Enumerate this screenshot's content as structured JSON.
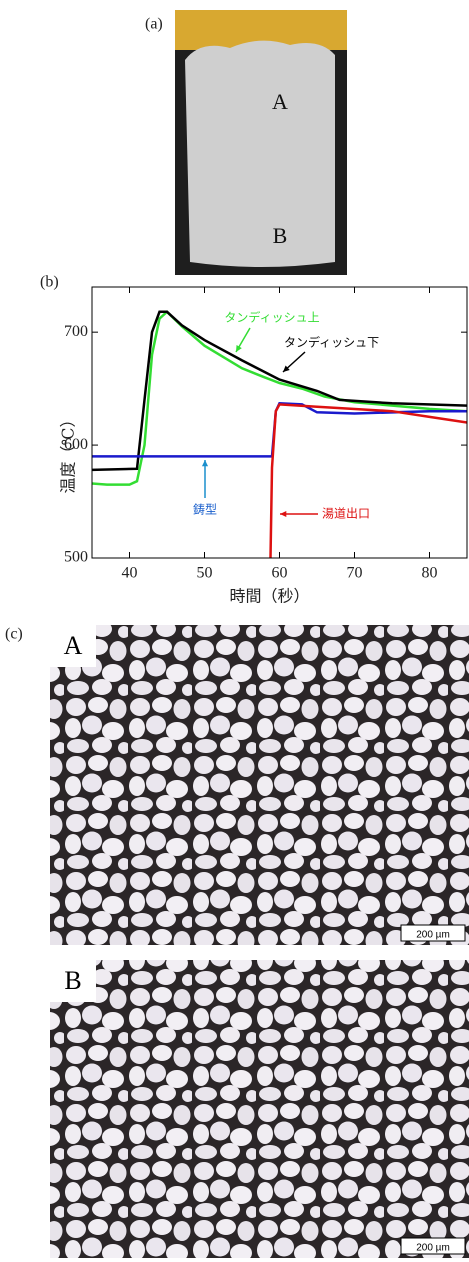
{
  "panel_a": {
    "label": "(a)",
    "points": [
      "A",
      "B"
    ]
  },
  "chart_data": {
    "type": "line",
    "panel_label": "(b)",
    "xlabel": "時間（秒）",
    "ylabel": "温度（℃）",
    "xlim": [
      35,
      85
    ],
    "ylim": [
      500,
      740
    ],
    "xticks": [
      40,
      50,
      60,
      70,
      80
    ],
    "yticks": [
      500,
      600,
      700
    ],
    "series": [
      {
        "name": "タンディッシュ上",
        "color": "#33dd33",
        "x": [
          35,
          37,
          40,
          41,
          42,
          43,
          44,
          45,
          47,
          50,
          55,
          58,
          60,
          63,
          66,
          70,
          80,
          85
        ],
        "values": [
          566,
          565,
          565,
          568,
          600,
          680,
          712,
          718,
          705,
          688,
          668,
          660,
          655,
          650,
          643,
          638,
          632,
          630
        ]
      },
      {
        "name": "タンディッシュ下",
        "color": "#000000",
        "x": [
          35,
          41,
          42,
          43,
          44,
          45,
          47,
          50,
          55,
          60,
          65,
          68,
          75,
          85
        ],
        "values": [
          578,
          579,
          640,
          700,
          718,
          718,
          706,
          693,
          675,
          658,
          648,
          640,
          637,
          635
        ]
      },
      {
        "name": "鋳型",
        "color": "#1a1acc",
        "x": [
          35,
          59,
          59.5,
          60,
          63,
          65,
          70,
          80,
          85
        ],
        "values": [
          590,
          590,
          630,
          637,
          636,
          629,
          628,
          630,
          630
        ]
      },
      {
        "name": "湯道出口",
        "color": "#dd1111",
        "x": [
          58.8,
          59,
          59.5,
          60,
          65,
          75,
          80,
          85
        ],
        "values": [
          500,
          580,
          630,
          636,
          634,
          630,
          625,
          620
        ]
      }
    ]
  },
  "panel_c": {
    "label": "(c)",
    "images": [
      {
        "label": "A",
        "scale": "200 µm"
      },
      {
        "label": "B",
        "scale": "200 µm"
      }
    ]
  }
}
